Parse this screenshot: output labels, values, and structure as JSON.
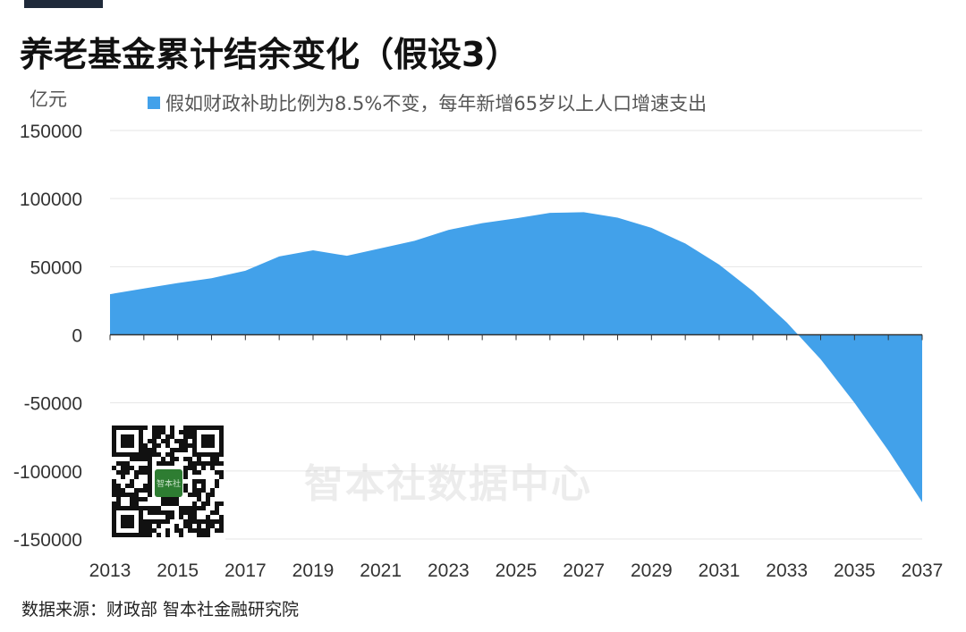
{
  "title": "养老基金累计结余变化（假设3）",
  "unit_label": "亿元",
  "legend_label": "假如财政补助比例为8.5%不变，每年新增65岁以上人口增速支出",
  "source": "数据来源：财政部 智本社金融研究院",
  "watermark": "智本社数据中心",
  "qr_logo_text": "智本社",
  "colors": {
    "area": "#42a1ea",
    "grid": "#e6e6e6",
    "axis": "#333333",
    "topbar": "#1f2a3a"
  },
  "chart_data": {
    "type": "area",
    "title": "养老基金累计结余变化（假设3）",
    "ylabel": "亿元",
    "ylim": [
      -150000,
      150000
    ],
    "yticks": [
      150000,
      100000,
      50000,
      0,
      -50000,
      -100000,
      -150000
    ],
    "ytick_labels": [
      "150000",
      "100000",
      "50000",
      "0",
      "-50000",
      "-100000",
      "-150000"
    ],
    "xlim": [
      2013,
      2037
    ],
    "xticks": [
      2013,
      2015,
      2017,
      2019,
      2021,
      2023,
      2025,
      2027,
      2029,
      2031,
      2033,
      2035,
      2037
    ],
    "xtick_labels": [
      "2013",
      "2015",
      "2017",
      "2019",
      "2021",
      "2023",
      "2025",
      "2027",
      "2029",
      "2031",
      "2033",
      "2035",
      "2037"
    ],
    "grid": true,
    "legend_position": "top",
    "series": [
      {
        "name": "假如财政补助比例为8.5%不变，每年新增65岁以上人口增速支出",
        "x": [
          2013,
          2014,
          2015,
          2016,
          2017,
          2018,
          2019,
          2020,
          2021,
          2022,
          2023,
          2024,
          2025,
          2026,
          2027,
          2028,
          2029,
          2030,
          2031,
          2032,
          2033,
          2034,
          2035,
          2036,
          2037
        ],
        "y": [
          29800,
          34000,
          38000,
          41500,
          47000,
          57500,
          62000,
          58000,
          63500,
          69000,
          77000,
          82000,
          85500,
          89500,
          90000,
          86000,
          78500,
          67000,
          51500,
          32000,
          9000,
          -18000,
          -50000,
          -85000,
          -123000
        ]
      }
    ]
  }
}
